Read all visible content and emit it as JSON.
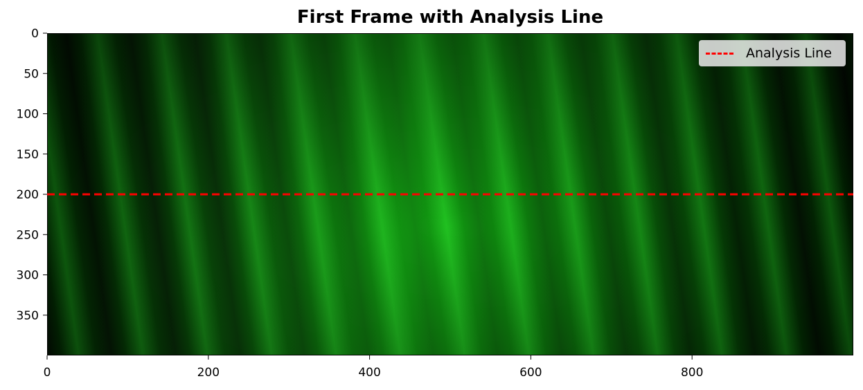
{
  "title": "First Frame with Analysis Line",
  "x_axis": {
    "ticks": [
      "0",
      "200",
      "400",
      "600",
      "800"
    ],
    "tick_values": [
      0,
      200,
      400,
      600,
      800
    ],
    "range": [
      0,
      1000
    ]
  },
  "y_axis": {
    "ticks": [
      "0",
      "50",
      "100",
      "150",
      "200",
      "250",
      "300",
      "350"
    ],
    "tick_values": [
      0,
      50,
      100,
      150,
      200,
      250,
      300,
      350
    ],
    "range": [
      0,
      400
    ],
    "inverted": true
  },
  "analysis_line": {
    "y": 200,
    "color": "#ff0000",
    "style": "dashed"
  },
  "legend": {
    "label": "Analysis Line",
    "placement": "top-right"
  },
  "image": {
    "description_colors": {
      "fringe_bright": "#1faa1f",
      "fringe_dark": "#020a02"
    }
  }
}
